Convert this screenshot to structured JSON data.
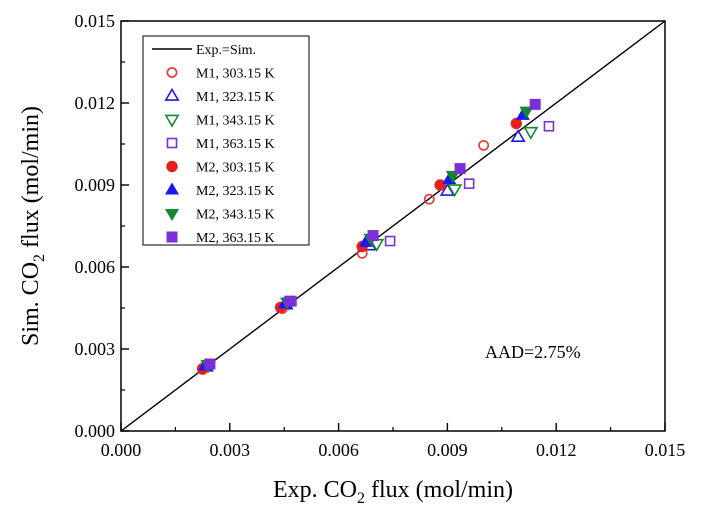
{
  "chart_data": {
    "type": "scatter",
    "xlabel_pre": "Exp. CO",
    "xlabel_sub": "2",
    "xlabel_post": " flux (mol/min)",
    "ylabel_pre": "Sim. CO",
    "ylabel_sub": "2",
    "ylabel_post": " flux (mol/min)",
    "xlim": [
      0,
      0.015
    ],
    "ylim": [
      0,
      0.015
    ],
    "x_ticks": [
      "0.000",
      "0.003",
      "0.006",
      "0.009",
      "0.012",
      "0.015"
    ],
    "y_ticks": [
      "0.000",
      "0.003",
      "0.006",
      "0.009",
      "0.012",
      "0.015"
    ],
    "grid": false,
    "legend_position": "top-left",
    "annotation": "AAD=2.75%",
    "reference_line": {
      "name": "Exp.=Sim.",
      "color": "#000000"
    },
    "series": [
      {
        "name": "M1, 303.15 K",
        "marker": "circle",
        "filled": false,
        "color": "#e8382f",
        "points": [
          [
            0.00225,
            0.00225
          ],
          [
            0.00445,
            0.00448
          ],
          [
            0.00665,
            0.0065
          ],
          [
            0.0085,
            0.00848
          ],
          [
            0.01,
            0.01045
          ]
        ]
      },
      {
        "name": "M1, 323.15 K",
        "marker": "triangle-up",
        "filled": false,
        "color": "#1a1aee",
        "points": [
          [
            0.00235,
            0.00235
          ],
          [
            0.00455,
            0.00462
          ],
          [
            0.00685,
            0.00678
          ],
          [
            0.009,
            0.00878
          ],
          [
            0.01095,
            0.01075
          ]
        ]
      },
      {
        "name": "M1, 343.15 K",
        "marker": "triangle-down",
        "filled": false,
        "color": "#15892f",
        "points": [
          [
            0.0024,
            0.0024
          ],
          [
            0.00462,
            0.0047
          ],
          [
            0.00705,
            0.00685
          ],
          [
            0.0092,
            0.00885
          ],
          [
            0.0113,
            0.01095
          ]
        ]
      },
      {
        "name": "M1, 363.15 K",
        "marker": "square",
        "filled": false,
        "color": "#7b2fd6",
        "points": [
          [
            0.00245,
            0.00245
          ],
          [
            0.0047,
            0.00475
          ],
          [
            0.00742,
            0.00695
          ],
          [
            0.0096,
            0.00905
          ],
          [
            0.0118,
            0.01115
          ]
        ]
      },
      {
        "name": "M2, 303.15 K",
        "marker": "circle",
        "filled": true,
        "color": "#e8201c",
        "points": [
          [
            0.00225,
            0.00228
          ],
          [
            0.0044,
            0.00452
          ],
          [
            0.00665,
            0.00675
          ],
          [
            0.0088,
            0.009
          ],
          [
            0.0109,
            0.01125
          ]
        ]
      },
      {
        "name": "M2, 323.15 K",
        "marker": "triangle-up",
        "filled": true,
        "color": "#1a1aee",
        "points": [
          [
            0.00232,
            0.00238
          ],
          [
            0.00452,
            0.00465
          ],
          [
            0.00675,
            0.0069
          ],
          [
            0.00905,
            0.0092
          ],
          [
            0.01108,
            0.01155
          ]
        ]
      },
      {
        "name": "M2, 343.15 K",
        "marker": "triangle-down",
        "filled": true,
        "color": "#15892f",
        "points": [
          [
            0.0024,
            0.00243
          ],
          [
            0.00458,
            0.00472
          ],
          [
            0.00688,
            0.00705
          ],
          [
            0.00915,
            0.00935
          ],
          [
            0.01118,
            0.0117
          ]
        ]
      },
      {
        "name": "M2, 363.15 K",
        "marker": "square",
        "filled": true,
        "color": "#7b2fd6",
        "points": [
          [
            0.00245,
            0.00245
          ],
          [
            0.00465,
            0.00475
          ],
          [
            0.00695,
            0.00715
          ],
          [
            0.00935,
            0.0096
          ],
          [
            0.01142,
            0.01195
          ]
        ]
      }
    ]
  }
}
